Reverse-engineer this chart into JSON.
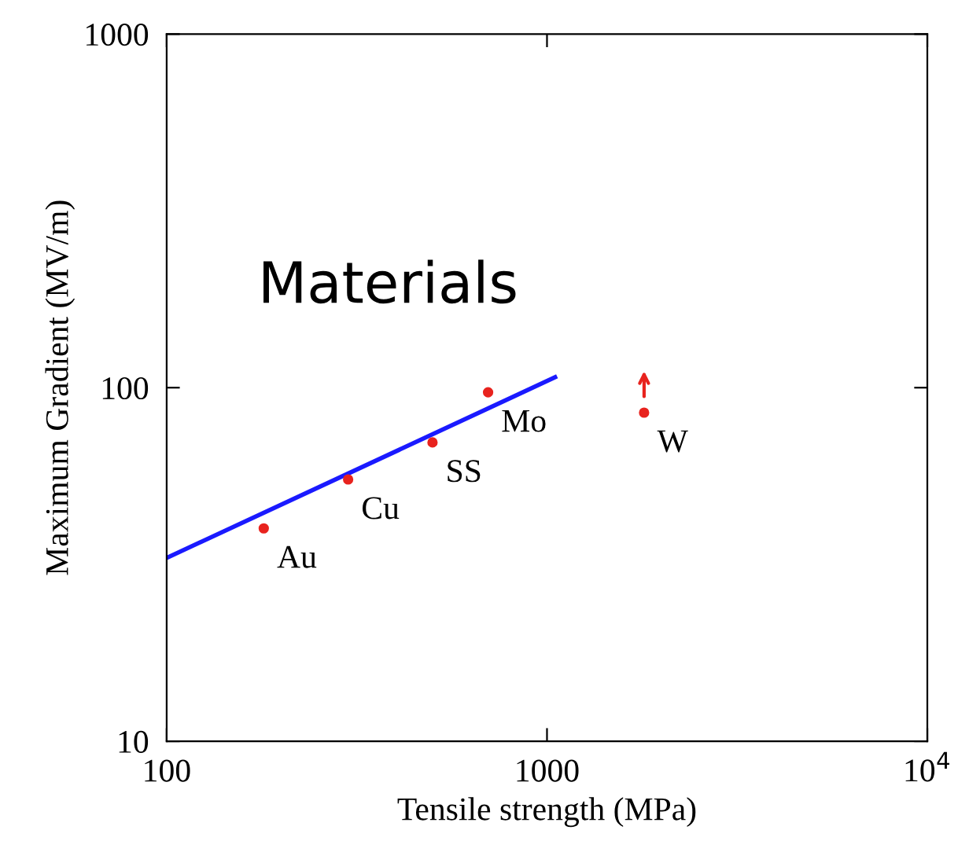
{
  "chart_data": {
    "type": "scatter",
    "xlabel": "Tensile strength (MPa)",
    "ylabel": "Maximum Gradient (MV/m)",
    "log": "xy",
    "xlim": [
      100,
      10000
    ],
    "ylim": [
      10,
      1000
    ],
    "xticks": [
      100,
      1000,
      {
        "value": 10000,
        "label": "10$^{4}$"
      }
    ],
    "yticks": [
      10,
      100,
      1000
    ],
    "series": [
      {
        "color": "#e8231e",
        "x": [
          180,
          300,
          500,
          700,
          1800
        ],
        "values": [
          40,
          55,
          70,
          97,
          85
        ],
        "marker": "circle"
      },
      {
        "type": "line",
        "color": "#1a1aff",
        "x": [
          100,
          1050
        ],
        "values": [
          33,
          107
        ],
        "marker": "none",
        "line_style": "solid"
      }
    ],
    "annotations": [
      "Materials",
      {
        "text": "Au",
        "x": 180,
        "y": 40
      },
      {
        "text": "Cu",
        "x": 300,
        "y": 55
      },
      {
        "text": "SS",
        "x": 500,
        "y": 70
      },
      {
        "text": "Mo",
        "x": 700,
        "y": 97
      },
      {
        "text": "W",
        "x": 1800,
        "y": 85
      }
    ],
    "grid": false,
    "legend": false
  }
}
